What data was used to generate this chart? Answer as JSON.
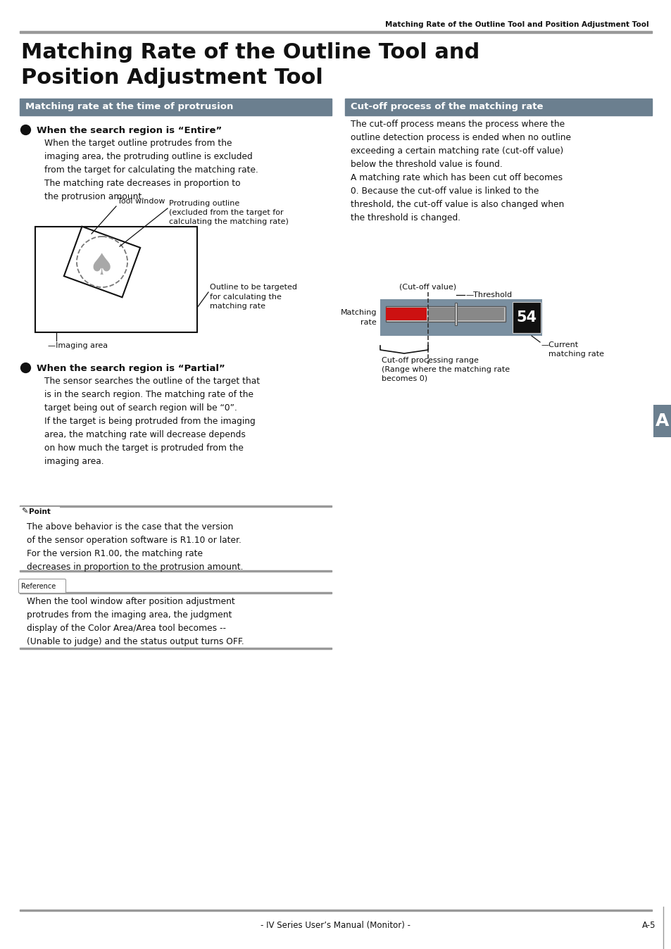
{
  "page_header": "Matching Rate of the Outline Tool and Position Adjustment Tool",
  "main_title_line1": "Matching Rate of the Outline Tool and",
  "main_title_line2": "Position Adjustment Tool",
  "left_section_title": "Matching rate at the time of protrusion",
  "right_section_title": "Cut-off process of the matching rate",
  "section_title_bg": "#6b7f8f",
  "section_title_color": "#ffffff",
  "left_bullet1_title": "When the search region is “Entire”",
  "left_bullet1_text": "When the target outline protrudes from the\nimaging area, the protruding outline is excluded\nfrom the target for calculating the matching rate.\nThe matching rate decreases in proportion to\nthe protrusion amount.",
  "left_bullet2_title": "When the search region is “Partial”",
  "left_bullet2_text": "The sensor searches the outline of the target that\nis in the search region. The matching rate of the\ntarget being out of search region will be “0”.\nIf the target is being protruded from the imaging\narea, the matching rate will decrease depends\non how much the target is protruded from the\nimaging area.",
  "right_cutoff_text": "The cut-off process means the process where the\noutline detection process is ended when no outline\nexceeding a certain matching rate (cut-off value)\nbelow the threshold value is found.\nA matching rate which has been cut off becomes\n0. Because the cut-off value is linked to the\nthreshold, the cut-off value is also changed when\nthe threshold is changed.",
  "point_text": "The above behavior is the case that the version\nof the sensor operation software is R1.10 or later.\nFor the version R1.00, the matching rate\ndecreases in proportion to the protrusion amount.",
  "reference_text": "When the tool window after position adjustment\nprotrudes from the imaging area, the judgment\ndisplay of the Color Area/Area tool becomes --\n(Unable to judge) and the status output turns OFF.",
  "footer_text": "- IV Series User’s Manual (Monitor) -",
  "footer_page": "A-5",
  "sidebar_letter": "A",
  "sidebar_color": "#6b7f8f",
  "diagram_label_tool_window": "Tool window",
  "diagram_label_protruding_1": "Protruding outline",
  "diagram_label_protruding_2": "(excluded from the target for",
  "diagram_label_protruding_3": "calculating the matching rate)",
  "diagram_label_outline_1": "Outline to be targeted",
  "diagram_label_outline_2": "for calculating the",
  "diagram_label_outline_3": "matching rate",
  "diagram_label_imaging": "—Imaging area",
  "cutoff_label_cutoff_value": "(Cut-off value)",
  "cutoff_label_threshold": "—Threshold",
  "cutoff_label_matching_rate": "Matching\nrate",
  "cutoff_label_range_1": "Cut-off processing range",
  "cutoff_label_range_2": "(Range where the matching rate",
  "cutoff_label_range_3": "becomes 0)",
  "cutoff_label_current_1": "—Current",
  "cutoff_label_current_2": "matching rate",
  "cutoff_number": "54",
  "bar_bg_color": "#7a8fa0",
  "bar_red_color": "#cc1111",
  "bar_gray_color": "#888888",
  "bar_dark_color": "#333333",
  "inner_bar_light": "#aaaaaa"
}
